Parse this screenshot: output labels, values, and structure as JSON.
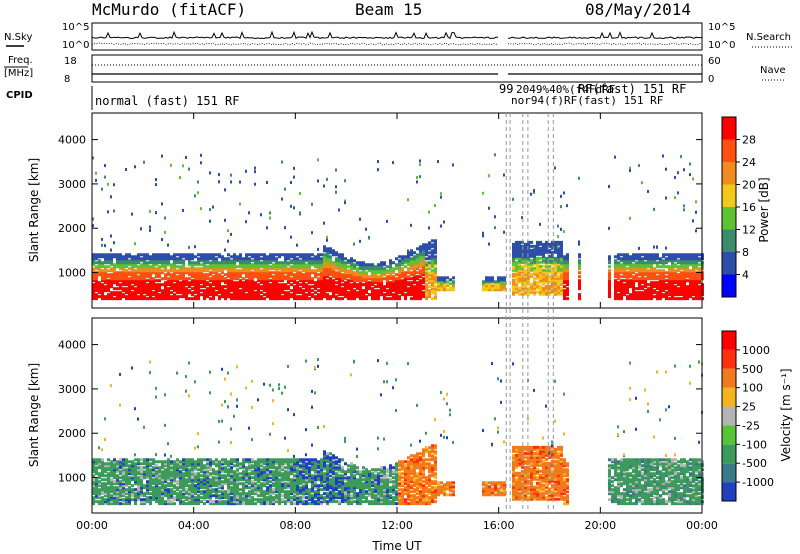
{
  "header": {
    "title": "McMurdo (fitACF)",
    "beam": "Beam 15",
    "date": "08/May/2014"
  },
  "status_panels": {
    "nsky_label": "N.Sky",
    "nsky_ticks": [
      "10^5",
      "10^0"
    ],
    "nsearch_label": "N.Search",
    "nsearch_ticks": [
      "10^5",
      "10^0"
    ],
    "freq_label_1": "Freq.",
    "freq_label_2": "[MHz]",
    "freq_ticks": [
      "18",
      "8"
    ],
    "nave_label": "Nave",
    "nave_ticks": [
      "60",
      "0"
    ],
    "cpid_label": "CPID",
    "cpid_main": "normal (fast) 151 RF",
    "cpid_right": "RF(fast) 151 RF",
    "cpid_codes": "99",
    "cpid_overlap": "2049%40%(f4FdRF",
    "cpid_overlap_2": "nor94(f)RF(fast) 151 RF"
  },
  "chart_data": [
    {
      "type": "heatmap",
      "name": "power",
      "ylabel": "Slant Range [km]",
      "ylim": [
        200,
        4600
      ],
      "yticks": [
        "1000",
        "2000",
        "3000",
        "4000"
      ],
      "xlim_hours": [
        0,
        24
      ],
      "colorbar_label": "Power [dB]",
      "colorbar_ticks": [
        "4",
        "8",
        "12",
        "16",
        "20",
        "24",
        "28"
      ],
      "colors": [
        "#0000ff",
        "#2d4ea8",
        "#3a8c6a",
        "#5ec235",
        "#f2c81a",
        "#f08c1e",
        "#ff5010",
        "#ff0000"
      ]
    },
    {
      "type": "heatmap",
      "name": "velocity",
      "ylabel": "Slant Range [km]",
      "ylim": [
        200,
        4600
      ],
      "yticks": [
        "1000",
        "2000",
        "3000",
        "4000"
      ],
      "xlim_hours": [
        0,
        24
      ],
      "xticks": [
        "00:00",
        "04:00",
        "08:00",
        "12:00",
        "16:00",
        "20:00",
        "00:00"
      ],
      "xlabel": "Time UT",
      "colorbar_label": "Velocity [m s⁻¹]",
      "colorbar_ticks": [
        "1000",
        "500",
        "100",
        "25",
        "-25",
        "-100",
        "-500",
        "-1000"
      ],
      "colors": [
        "#2040c0",
        "#3a7a88",
        "#3c9a5a",
        "#56c436",
        "#b4b4b4",
        "#f4b41e",
        "#f07a1c",
        "#ff3010",
        "#ff0000"
      ]
    }
  ]
}
